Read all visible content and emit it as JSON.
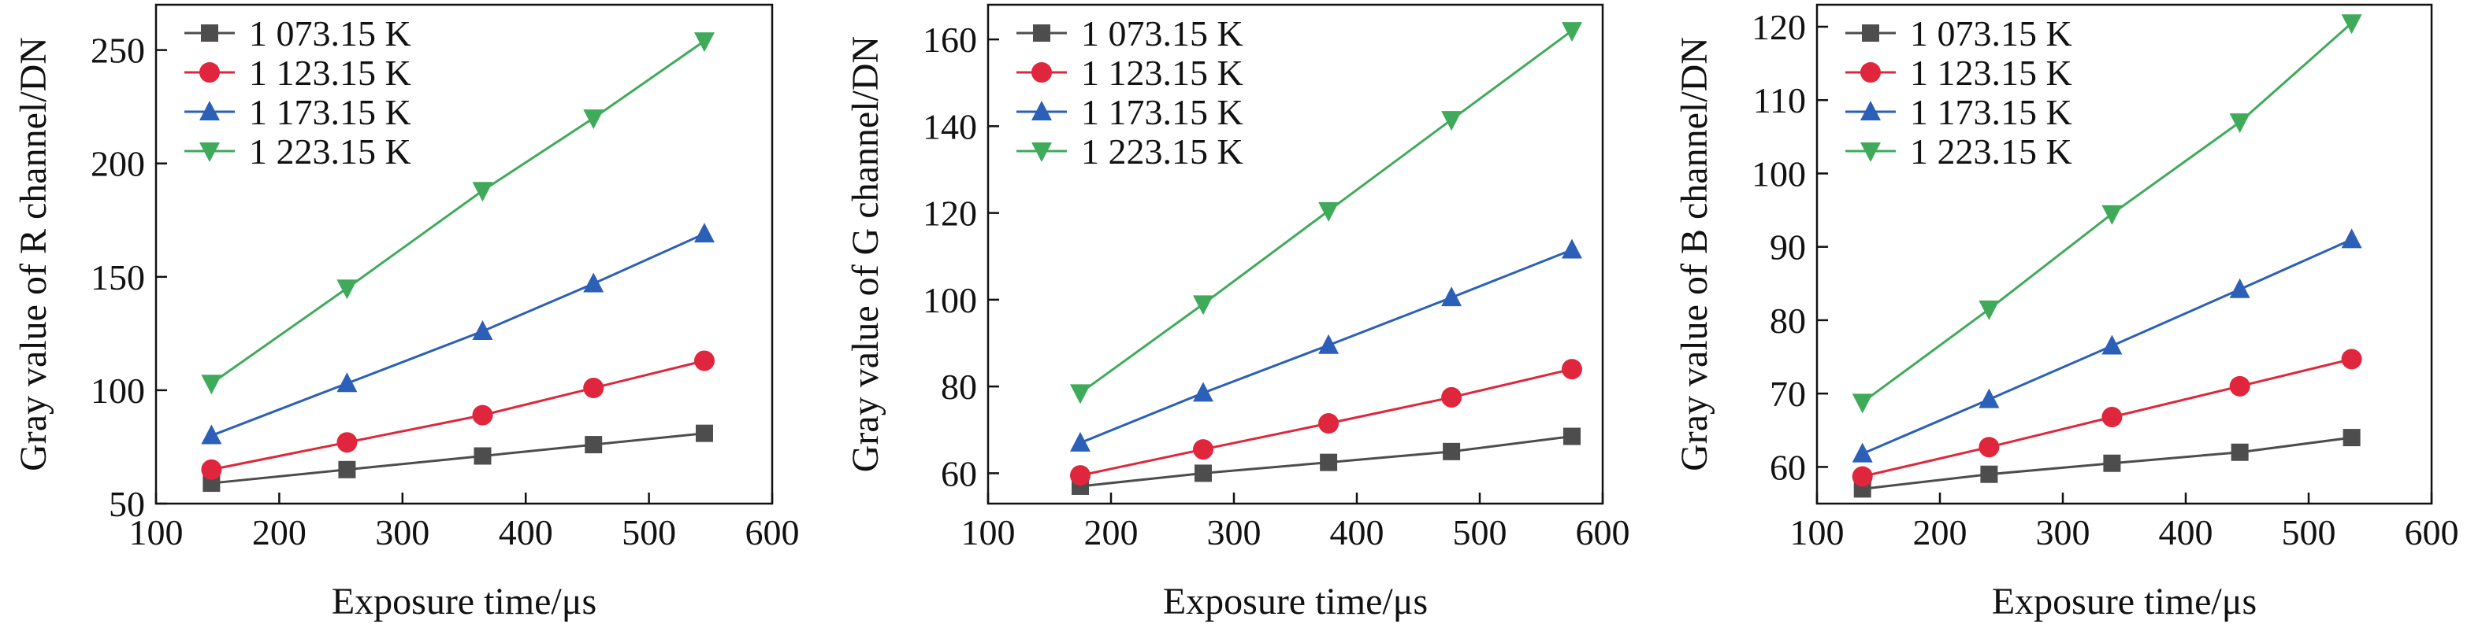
{
  "chart_data": [
    {
      "type": "line",
      "xlabel": "Exposure time/μs",
      "ylabel": "Gray value of R channel/DN",
      "xlim": [
        100,
        600
      ],
      "ylim": [
        50,
        270
      ],
      "xticks": [
        100,
        200,
        300,
        400,
        500,
        600
      ],
      "yticks": [
        50,
        100,
        150,
        200,
        250
      ],
      "legend_position": "top-left",
      "grid": false,
      "series": [
        {
          "name": "1 073.15 K",
          "color": "#4d4d4d",
          "marker": "square",
          "x": [
            145,
            255,
            365,
            455,
            545
          ],
          "y": [
            59,
            65,
            71,
            76,
            81
          ]
        },
        {
          "name": "1 123.15 K",
          "color": "#e0263c",
          "marker": "circle",
          "x": [
            145,
            255,
            365,
            455,
            545
          ],
          "y": [
            65,
            77,
            89,
            101,
            113
          ]
        },
        {
          "name": "1 173.15 K",
          "color": "#2c5fb8",
          "marker": "triangle-up",
          "x": [
            145,
            255,
            365,
            455,
            545
          ],
          "y": [
            80,
            103,
            126,
            147,
            169
          ]
        },
        {
          "name": "1 223.15 K",
          "color": "#3fab5a",
          "marker": "triangle-down",
          "x": [
            145,
            255,
            365,
            455,
            545
          ],
          "y": [
            103,
            145,
            188,
            220,
            254
          ]
        }
      ]
    },
    {
      "type": "line",
      "xlabel": "Exposure time/μs",
      "ylabel": "Gray value of G channel/DN",
      "xlim": [
        100,
        600
      ],
      "ylim": [
        53,
        168
      ],
      "xticks": [
        100,
        200,
        300,
        400,
        500,
        600
      ],
      "yticks": [
        60,
        80,
        100,
        120,
        140,
        160
      ],
      "legend_position": "top-left",
      "grid": false,
      "series": [
        {
          "name": "1 073.15 K",
          "color": "#4d4d4d",
          "marker": "square",
          "x": [
            175,
            275,
            377,
            477,
            575
          ],
          "y": [
            57,
            60,
            62.5,
            65,
            68.5
          ]
        },
        {
          "name": "1 123.15 K",
          "color": "#e0263c",
          "marker": "circle",
          "x": [
            175,
            275,
            377,
            477,
            575
          ],
          "y": [
            59.5,
            65.5,
            71.5,
            77.5,
            84
          ]
        },
        {
          "name": "1 173.15 K",
          "color": "#2c5fb8",
          "marker": "triangle-up",
          "x": [
            175,
            275,
            377,
            477,
            575
          ],
          "y": [
            67,
            78.5,
            89.5,
            100.5,
            111.5
          ]
        },
        {
          "name": "1 223.15 K",
          "color": "#3fab5a",
          "marker": "triangle-down",
          "x": [
            175,
            275,
            377,
            477,
            575
          ],
          "y": [
            78.5,
            99,
            120.5,
            141.5,
            162
          ]
        }
      ]
    },
    {
      "type": "line",
      "xlabel": "Exposure time/μs",
      "ylabel": "Gray value of B channel/DN",
      "xlim": [
        100,
        600
      ],
      "ylim": [
        55,
        123
      ],
      "xticks": [
        100,
        200,
        300,
        400,
        500,
        600
      ],
      "yticks": [
        60,
        70,
        80,
        90,
        100,
        110,
        120
      ],
      "legend_position": "top-left",
      "grid": false,
      "series": [
        {
          "name": "1 073.15 K",
          "color": "#4d4d4d",
          "marker": "square",
          "x": [
            137,
            240,
            340,
            444,
            535
          ],
          "y": [
            57,
            59,
            60.5,
            62,
            64
          ]
        },
        {
          "name": "1 123.15 K",
          "color": "#e0263c",
          "marker": "circle",
          "x": [
            137,
            240,
            340,
            444,
            535
          ],
          "y": [
            58.7,
            62.7,
            66.8,
            71,
            74.7
          ]
        },
        {
          "name": "1 173.15 K",
          "color": "#2c5fb8",
          "marker": "triangle-up",
          "x": [
            137,
            240,
            340,
            444,
            535
          ],
          "y": [
            61.8,
            69.2,
            76.5,
            84.2,
            91
          ]
        },
        {
          "name": "1 223.15 K",
          "color": "#3fab5a",
          "marker": "triangle-down",
          "x": [
            137,
            240,
            340,
            444,
            535
          ],
          "y": [
            68.8,
            81.5,
            94.5,
            107,
            120.5
          ]
        }
      ]
    }
  ]
}
